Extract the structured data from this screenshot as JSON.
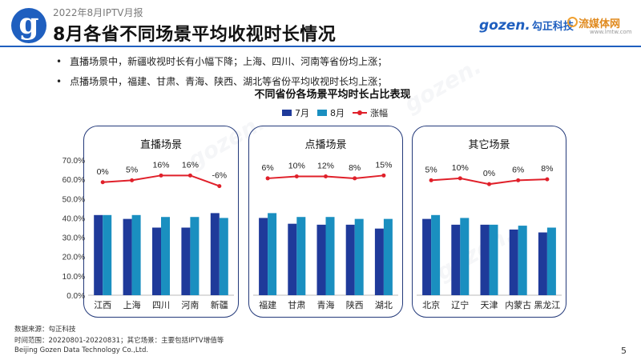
{
  "header": {
    "report_label": "2022年8月IPTV月报",
    "title": "8月各省不同场景平均收视时长情况",
    "logo_letter": "g",
    "brand_gozen": "gozen.",
    "brand_gozen_cn": "勾正科技",
    "brand_lm": "流媒体网",
    "brand_lm_url": "www.lmtw.com"
  },
  "bullets": [
    "直播场景中，新疆收视时长有小幅下降；上海、四川、河南等省份均上涨；",
    "点播场景中，福建、甘肃、青海、陕西、湖北等省份平均收视时长均上涨；"
  ],
  "colors": {
    "july": "#1f3a9a",
    "august": "#1a8fc0",
    "change": "#e0202a",
    "panel_border": "#243a7a"
  },
  "chart_data": {
    "type": "bar",
    "title": "不同省份各场景平均时长占比表现",
    "legend": [
      "7月",
      "8月",
      "涨幅"
    ],
    "legend_position": "top-center",
    "ylim": [
      0,
      70
    ],
    "yticks": [
      "0.0%",
      "10.0%",
      "20.0%",
      "30.0%",
      "40.0%",
      "50.0%",
      "60.0%",
      "70.0%"
    ],
    "panels": [
      {
        "title": "直播场景",
        "categories": [
          "江西",
          "上海",
          "四川",
          "河南",
          "新疆"
        ],
        "series": [
          {
            "name": "7月",
            "values": [
              41.5,
              39.5,
              35,
              35,
              42.5
            ]
          },
          {
            "name": "8月",
            "values": [
              41.5,
              41.5,
              40.5,
              40.5,
              40
            ]
          }
        ],
        "change_labels": [
          "0%",
          "5%",
          "16%",
          "16%",
          "-6%"
        ],
        "change_line_levels": [
          58.5,
          59.5,
          62,
          62,
          56.5
        ]
      },
      {
        "title": "点播场景",
        "categories": [
          "福建",
          "甘肃",
          "青海",
          "陕西",
          "湖北"
        ],
        "series": [
          {
            "name": "7月",
            "values": [
              40,
              37,
              36.5,
              36.5,
              34.5
            ]
          },
          {
            "name": "8月",
            "values": [
              42.5,
              40.5,
              40.5,
              39.5,
              39.5
            ]
          }
        ],
        "change_labels": [
          "6%",
          "10%",
          "12%",
          "8%",
          "15%"
        ],
        "change_line_levels": [
          60.5,
          61.5,
          61.5,
          60.5,
          62
        ]
      },
      {
        "title": "其它场景",
        "categories": [
          "北京",
          "辽宁",
          "天津",
          "内蒙古",
          "黑龙江"
        ],
        "series": [
          {
            "name": "7月",
            "values": [
              39.5,
              36.5,
              36.5,
              34,
              32.5
            ]
          },
          {
            "name": "8月",
            "values": [
              41.5,
              40,
              36.5,
              36,
              35
            ]
          }
        ],
        "change_labels": [
          "5%",
          "10%",
          "0%",
          "6%",
          "8%"
        ],
        "change_line_levels": [
          59.5,
          60.5,
          57.5,
          59.5,
          60
        ]
      }
    ]
  },
  "footer": {
    "source": "数据来源：勾正科技",
    "period": "时间范围：20220801-20220831；其它场景：主要包括IPTV增值等",
    "company": "Beijing Gozen Data Technology Co.,Ltd.",
    "page": "5"
  }
}
